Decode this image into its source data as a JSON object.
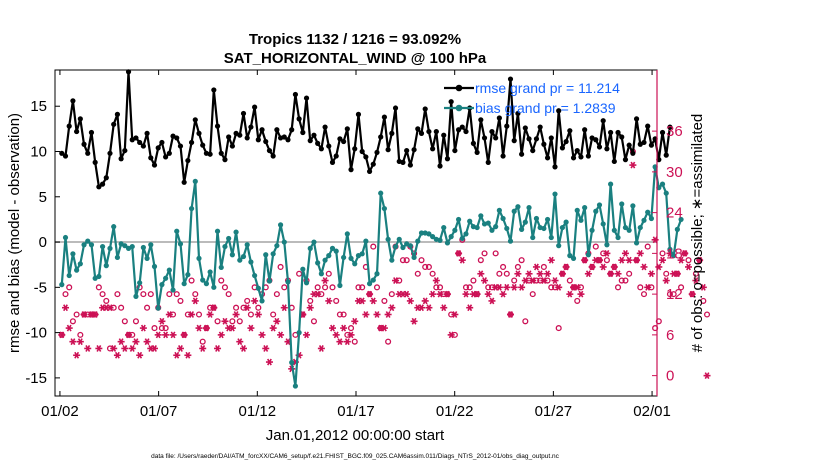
{
  "chart_data": {
    "type": "line",
    "title_line1": "Tropics 1132 / 1216 = 93.092%",
    "title_line2": "SAT_HORIZONTAL_WIND @ 100 hPa",
    "xlabel": "Jan.01,2012 00:00:00 start",
    "ylabel_left": "rmse and bias (model - observation)",
    "ylabel_right": "# of obs: o=possible; ∗=assimilated",
    "x_tick_labels": [
      "01/02",
      "01/07",
      "01/12",
      "01/17",
      "01/22",
      "01/27",
      "02/01"
    ],
    "x_tick_days": [
      1,
      6,
      11,
      16,
      21,
      26,
      31
    ],
    "xlim_days": [
      0.75,
      31.25
    ],
    "ylim_left": [
      -17,
      19
    ],
    "y_ticks_left": [
      -15,
      -10,
      -5,
      0,
      5,
      10,
      15
    ],
    "ylim_right": [
      -3,
      45
    ],
    "y_ticks_right": [
      0,
      6,
      12,
      18,
      24,
      30,
      36
    ],
    "zero_line": 0,
    "colors": {
      "rmse": "#000000",
      "bias": "#1a8080",
      "obs": "#cc1155",
      "legend_text": "#1a66ff",
      "zero_line": "#bbbbbb"
    },
    "series": [
      {
        "name": "rmse",
        "legend": "rmse grand pr = 11.214",
        "values": [
          9.8,
          9.5,
          12.8,
          15.6,
          12.2,
          13.6,
          10.8,
          9.8,
          12.1,
          8.8,
          6.1,
          6.4,
          7.1,
          9.8,
          13,
          14.1,
          9.2,
          10.1,
          18.8,
          11.3,
          11.5,
          11,
          10.6,
          12,
          9.3,
          8.5,
          10.4,
          11,
          9.4,
          9.8,
          11.7,
          11.5,
          10.6,
          6.6,
          9,
          11,
          13.5,
          12,
          10.7,
          9.8,
          9.7,
          16.8,
          12.8,
          9.8,
          9.1,
          11.6,
          10.6,
          12,
          11.8,
          14.2,
          11.5,
          12.7,
          14.9,
          11.3,
          12.4,
          11.1,
          10.1,
          9.5,
          12.4,
          11.5,
          11.6,
          11.3,
          12.4,
          16.3,
          13.6,
          12.1,
          15.9,
          11.2,
          11.8,
          10.9,
          10.3,
          12.7,
          10.6,
          8.8,
          9.5,
          11.4,
          11.1,
          12.5,
          8,
          10.3,
          14.1,
          10,
          9.4,
          7.8,
          8.6,
          9.9,
          11.6,
          13.8,
          10.2,
          12,
          14.8,
          8.9,
          8.8,
          10.1,
          8.5,
          10.2,
          12.5,
          12,
          14.7,
          12.2,
          10.3,
          12.2,
          8.4,
          11.8,
          9.2,
          15.5,
          10.1,
          12.4,
          12.7,
          12.2,
          14.8,
          10.9,
          9.9,
          13.5,
          11.5,
          8.8,
          12.2,
          11.5,
          13.7,
          9.5,
          12.8,
          18,
          11.2,
          14.2,
          9.7,
          12.6,
          11.4,
          10.1,
          11.4,
          12.7,
          10.8,
          9.3,
          11.5,
          8.3,
          14.5,
          10.4,
          11.1,
          12.3,
          9.3,
          10.1,
          9.4,
          12.4,
          9.5,
          11.5,
          11.3,
          10.5,
          13.4,
          10.3,
          12.1,
          8.9,
          12.1,
          11.6,
          9.1,
          10.7,
          9.8,
          13.6,
          10.8,
          11,
          12.8,
          10.7,
          11.4,
          9.1,
          12.1,
          9.6,
          12.7
        ]
      },
      {
        "name": "bias",
        "legend": "bias grand pr = 1.2839",
        "values": [
          -4.7,
          0.5,
          -3.7,
          -1.3,
          -3.1,
          -2.4,
          -0.3,
          0.1,
          -0.3,
          -4,
          -3.8,
          -0.5,
          -2.6,
          -0.7,
          1.7,
          -1.7,
          -0.2,
          -0.4,
          -0.7,
          -0.5,
          -6,
          -4.5,
          -0.6,
          -1.8,
          -0.3,
          -2.7,
          -7.3,
          -4.7,
          -4,
          -3.1,
          -5.3,
          1.2,
          -0.2,
          -4.6,
          -3.6,
          3.7,
          6.7,
          -1.8,
          -4.2,
          -4.6,
          -3.3,
          -5,
          1.2,
          -2.8,
          -0.5,
          0.4,
          -1.4,
          1.1,
          -2,
          -1.6,
          -0.3,
          -2.2,
          -3.7,
          -5.1,
          -6.5,
          -1.4,
          -4.3,
          -1.3,
          -0.4,
          1.9,
          0,
          -4.4,
          -13.3,
          -15.9,
          -10,
          -3,
          -4.5,
          -0.7,
          0,
          -2.3,
          -3.5,
          -2,
          -1.5,
          -0.7,
          -1,
          -4.8,
          -1.7,
          0.9,
          -1.8,
          -2.4,
          -1.5,
          -1.3,
          0.1,
          -4.6,
          -4.2,
          -3.5,
          5.4,
          3.7,
          0.3,
          -2,
          -0.5,
          0.3,
          -0.6,
          -0.2,
          -0.4,
          -1.7,
          0.1,
          1,
          1,
          0.9,
          0.6,
          0.3,
          0.2,
          1.6,
          -0.1,
          0.6,
          1.3,
          2.5,
          0.4,
          0.9,
          2.3,
          1.7,
          1.6,
          2.9,
          2,
          2.1,
          1.3,
          1.7,
          3.5,
          2.6,
          1.5,
          0.1,
          3.4,
          3.9,
          1.4,
          2.2,
          3.8,
          0.5,
          2.6,
          1.6,
          1.5,
          2.5,
          0.5,
          5.3,
          -0.4,
          1.6,
          2.2,
          -1.5,
          -1.8,
          3.5,
          2.4,
          3.8,
          -1.4,
          1.3,
          3.4,
          4.1,
          2,
          -0.3,
          6.4,
          1.3,
          0.5,
          4.2,
          1.6,
          1.3,
          4,
          -0.1,
          1.6,
          2.4,
          3.3,
          2.6,
          8.3,
          6,
          6.4,
          5.4,
          -0.8,
          -1.5,
          1.4,
          2.5
        ]
      },
      {
        "name": "obs",
        "possible": [
          6,
          12,
          13,
          8,
          9,
          6,
          9,
          9,
          9,
          9,
          13,
          12,
          11,
          4,
          10,
          12,
          10,
          8,
          6,
          6,
          8,
          13,
          12,
          10,
          12,
          7,
          10,
          7,
          7,
          12,
          9,
          12,
          11,
          6,
          9,
          14,
          12,
          9,
          5,
          7,
          10,
          10,
          8,
          14,
          13,
          12,
          8,
          10,
          8,
          10,
          11,
          9,
          13,
          10,
          12,
          13,
          14,
          9,
          12,
          16,
          13,
          14,
          10,
          6,
          15,
          9,
          14,
          11,
          8,
          13,
          12,
          13,
          15,
          13,
          11,
          9,
          9,
          6,
          7,
          5,
          13,
          13,
          16,
          12,
          19,
          13,
          7,
          11,
          5,
          12,
          19,
          14,
          17,
          17,
          19,
          18,
          15,
          17,
          16,
          16,
          15,
          13,
          13,
          12,
          12,
          9,
          6,
          18,
          20,
          13,
          13,
          14,
          12,
          17,
          18,
          13,
          13,
          18,
          15,
          16,
          15,
          9,
          14,
          16,
          17,
          8,
          14,
          12,
          14,
          14,
          16,
          14,
          13,
          13,
          7,
          15,
          16,
          14,
          13,
          11,
          13,
          17,
          18,
          16,
          19,
          17,
          18,
          17,
          15,
          16,
          13,
          14,
          14,
          15,
          33,
          17,
          13,
          12,
          19,
          13,
          7,
          8,
          18,
          15,
          12,
          12,
          15,
          13,
          18,
          17,
          12,
          15,
          17,
          11,
          9
        ],
        "assimilated": [
          6,
          10,
          7,
          5,
          3,
          5,
          9,
          4,
          9,
          9,
          4,
          10,
          10,
          10,
          4,
          3,
          5,
          4,
          6,
          4,
          5,
          3,
          7,
          5,
          4,
          4,
          6,
          8,
          6,
          9,
          6,
          3,
          4,
          6,
          3,
          9,
          11,
          7,
          4,
          7,
          9,
          10,
          4,
          6,
          8,
          7,
          7,
          9,
          5,
          4,
          10,
          7,
          11,
          9,
          6,
          4,
          2,
          7,
          8,
          6,
          10,
          5,
          1,
          2,
          3,
          9,
          6,
          10,
          12,
          12,
          4,
          14,
          11,
          7,
          6,
          5,
          7,
          5,
          6,
          8,
          11,
          11,
          9,
          12,
          11,
          9,
          7,
          7,
          9,
          10,
          14,
          12,
          12,
          12,
          11,
          8,
          10,
          10,
          11,
          10,
          12,
          14,
          12,
          10,
          12,
          6,
          9,
          18,
          17,
          12,
          10,
          12,
          12,
          15,
          14,
          12,
          11,
          13,
          13,
          12,
          13,
          9,
          13,
          15,
          13,
          14,
          15,
          14,
          16,
          15,
          14,
          15,
          17,
          14,
          13,
          15,
          16,
          12,
          13,
          13,
          12,
          17,
          15,
          16,
          17,
          17,
          16,
          18,
          15,
          16,
          15,
          17,
          18,
          17,
          31,
          17,
          18,
          16,
          13,
          15,
          20,
          16,
          17,
          14,
          18,
          15,
          15,
          17,
          18,
          16,
          12,
          14,
          17,
          13,
          0
        ]
      }
    ]
  },
  "footer": {
    "data_file": "data file: /Users/raeder/DAI/ATM_forcXX/CAM6_setup/f.e21.FHIST_BGC.f09_025.CAM6assim.011/Diags_NTrS_2012-01/obs_diag_output.nc"
  }
}
